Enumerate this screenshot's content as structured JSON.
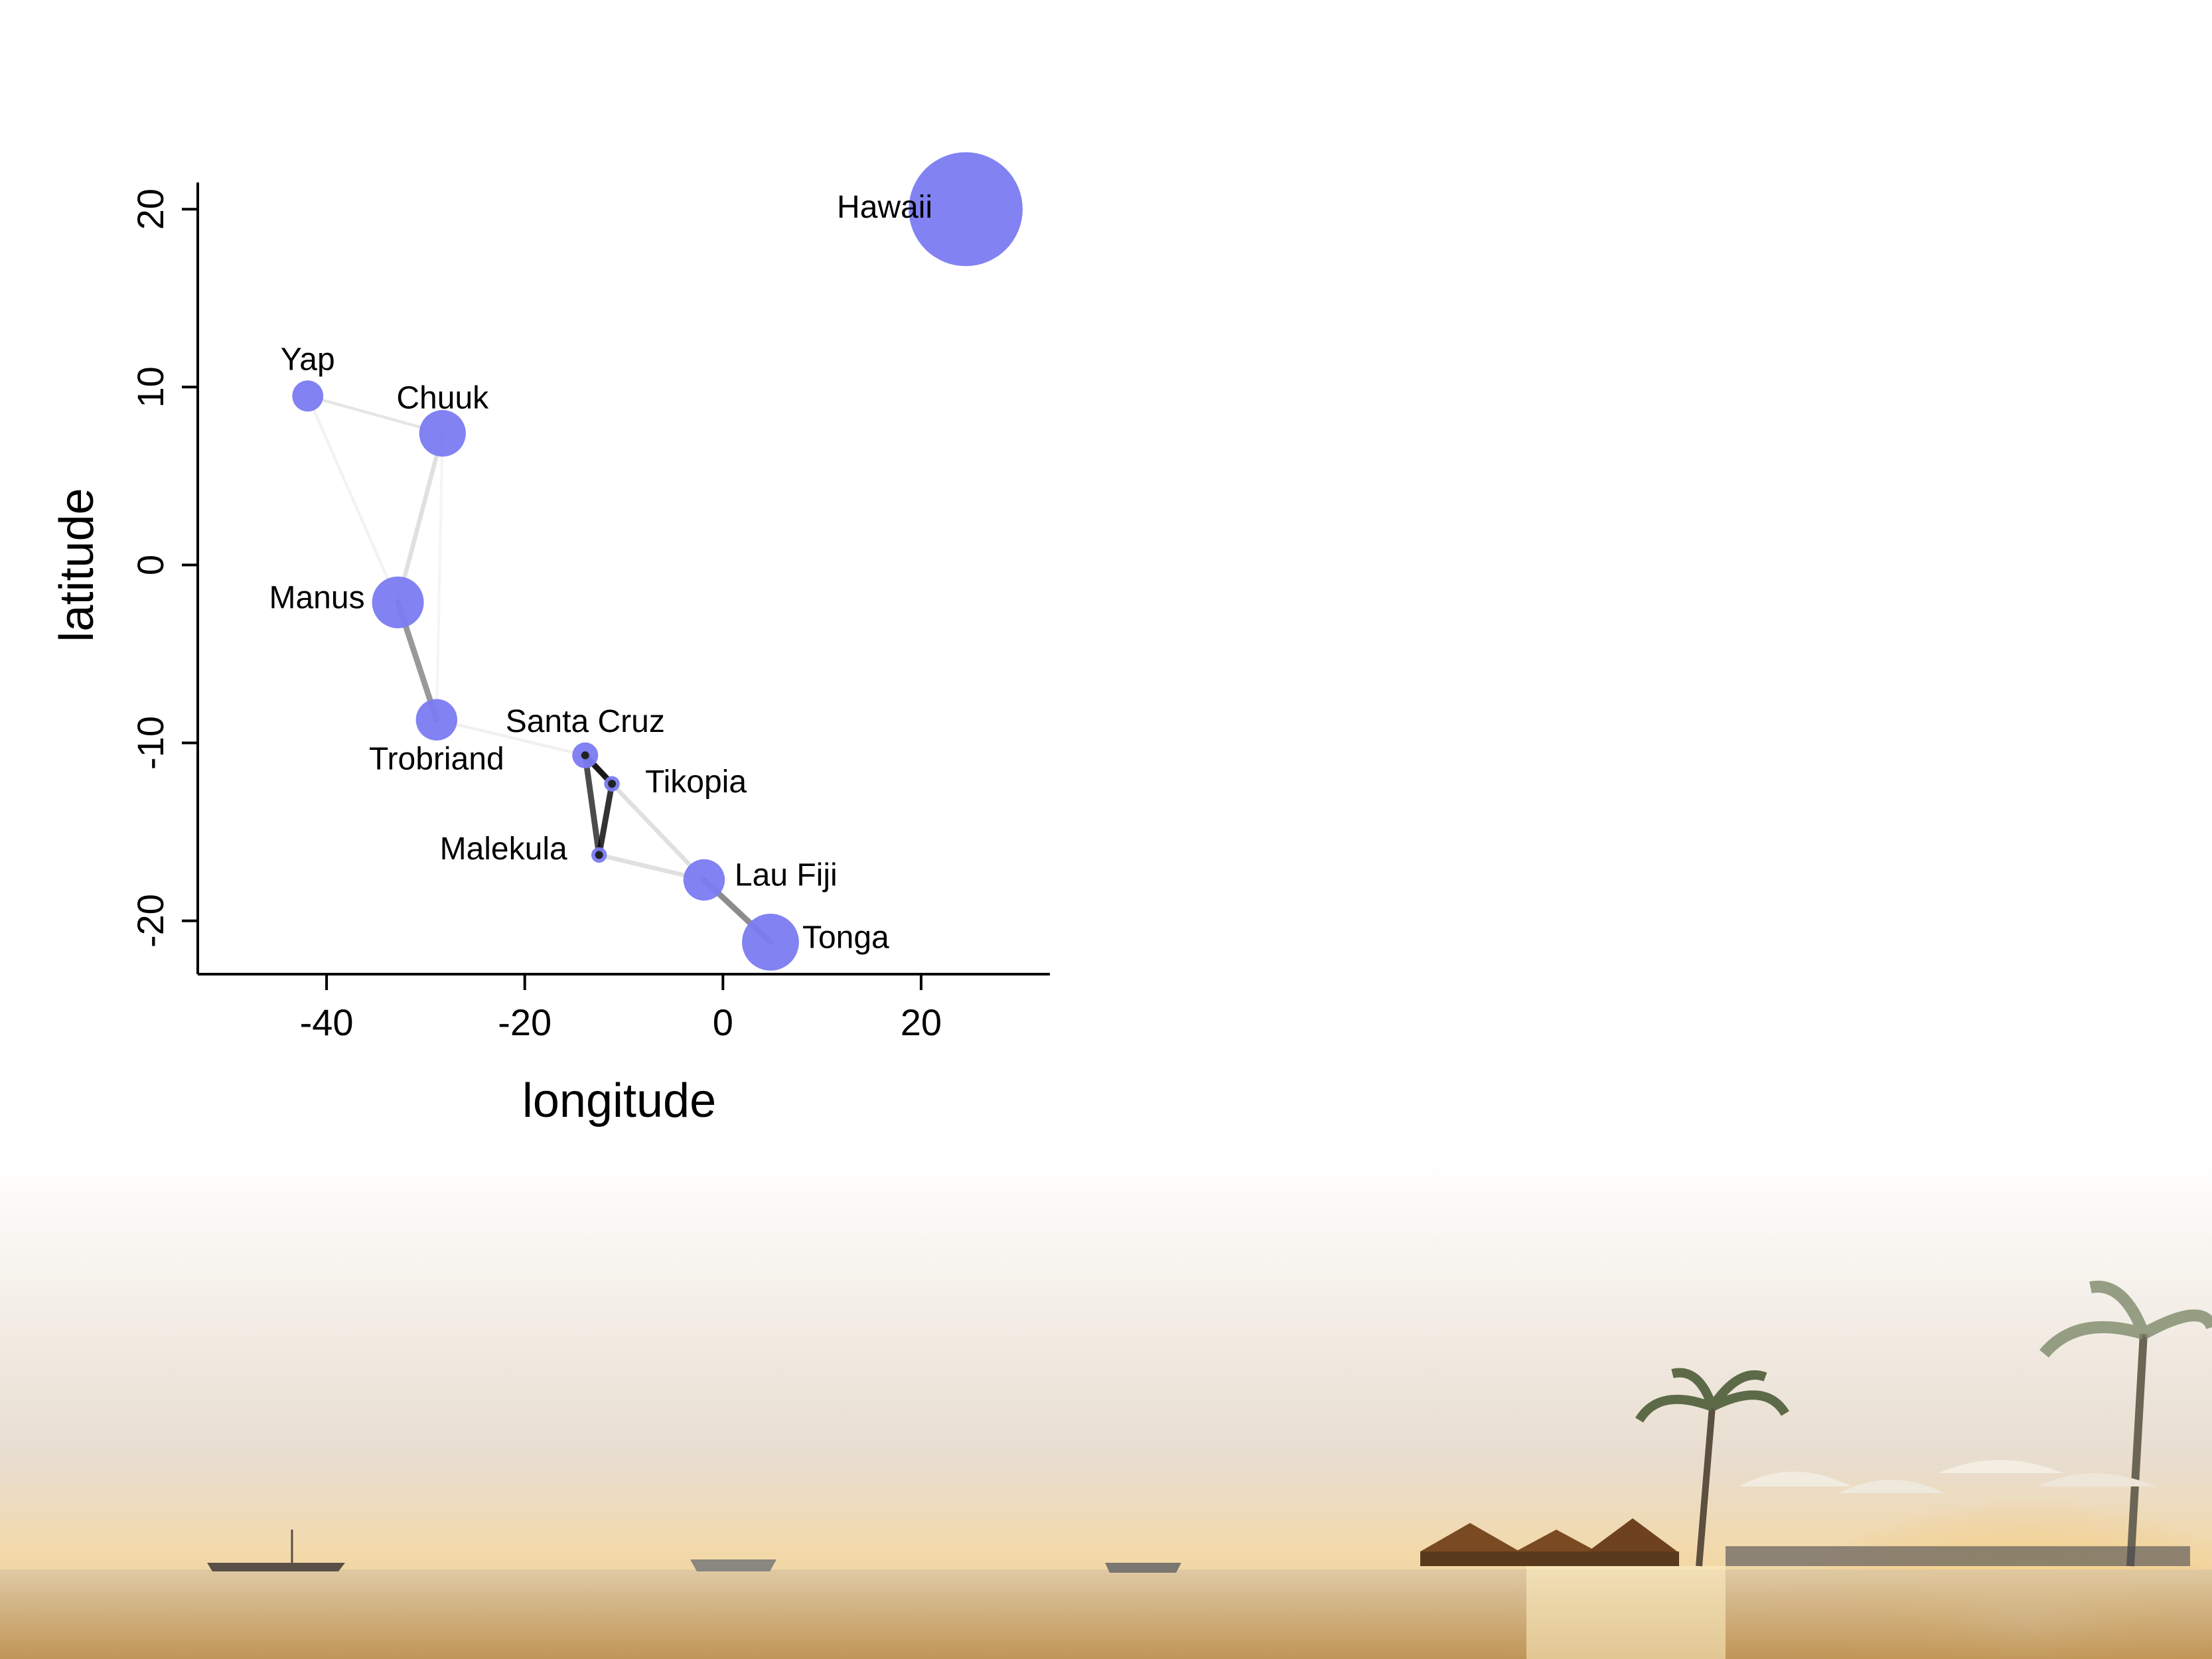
{
  "chart_data": {
    "type": "scatter",
    "title": "",
    "xlabel": "longitude",
    "ylabel": "latitude",
    "xlim": [
      -53,
      33
    ],
    "ylim": [
      -23,
      21.5
    ],
    "x_ticks": [
      -40,
      -20,
      0,
      20
    ],
    "y_ticks": [
      20,
      10,
      0,
      -10,
      -20
    ],
    "grid": false,
    "point_color": "#7b7bf2",
    "points": [
      {
        "name": "Hawaii",
        "lon": 24.5,
        "lat": 20.0,
        "size": 22
      },
      {
        "name": "Yap",
        "lon": -41.9,
        "lat": 9.5,
        "size": 6
      },
      {
        "name": "Chuuk",
        "lon": -28.3,
        "lat": 7.4,
        "size": 9
      },
      {
        "name": "Manus",
        "lon": -32.8,
        "lat": -2.1,
        "size": 10
      },
      {
        "name": "Trobriand",
        "lon": -28.9,
        "lat": -8.7,
        "size": 8
      },
      {
        "name": "Santa Cruz",
        "lon": -13.9,
        "lat": -10.7,
        "size": 5
      },
      {
        "name": "Tikopia",
        "lon": -11.2,
        "lat": -12.3,
        "size": 3
      },
      {
        "name": "Malekula",
        "lon": -12.5,
        "lat": -16.3,
        "size": 3
      },
      {
        "name": "Lau Fiji",
        "lon": -1.9,
        "lat": -17.7,
        "size": 8
      },
      {
        "name": "Tonga",
        "lon": 4.8,
        "lat": -21.2,
        "size": 11
      }
    ],
    "edges": [
      {
        "from": "Yap",
        "to": "Chuuk",
        "opacity": 0.1,
        "width": 2
      },
      {
        "from": "Yap",
        "to": "Manus",
        "opacity": 0.05,
        "width": 2
      },
      {
        "from": "Chuuk",
        "to": "Manus",
        "opacity": 0.12,
        "width": 3
      },
      {
        "from": "Chuuk",
        "to": "Trobriand",
        "opacity": 0.04,
        "width": 2
      },
      {
        "from": "Manus",
        "to": "Trobriand",
        "opacity": 0.4,
        "width": 4
      },
      {
        "from": "Trobriand",
        "to": "Santa Cruz",
        "opacity": 0.06,
        "width": 2
      },
      {
        "from": "Santa Cruz",
        "to": "Tikopia",
        "opacity": 0.9,
        "width": 4
      },
      {
        "from": "Santa Cruz",
        "to": "Malekula",
        "opacity": 0.7,
        "width": 4
      },
      {
        "from": "Tikopia",
        "to": "Malekula",
        "opacity": 0.8,
        "width": 4
      },
      {
        "from": "Tikopia",
        "to": "Lau Fiji",
        "opacity": 0.12,
        "width": 3
      },
      {
        "from": "Malekula",
        "to": "Lau Fiji",
        "opacity": 0.12,
        "width": 3
      },
      {
        "from": "Lau Fiji",
        "to": "Tonga",
        "opacity": 0.45,
        "width": 4
      }
    ]
  }
}
